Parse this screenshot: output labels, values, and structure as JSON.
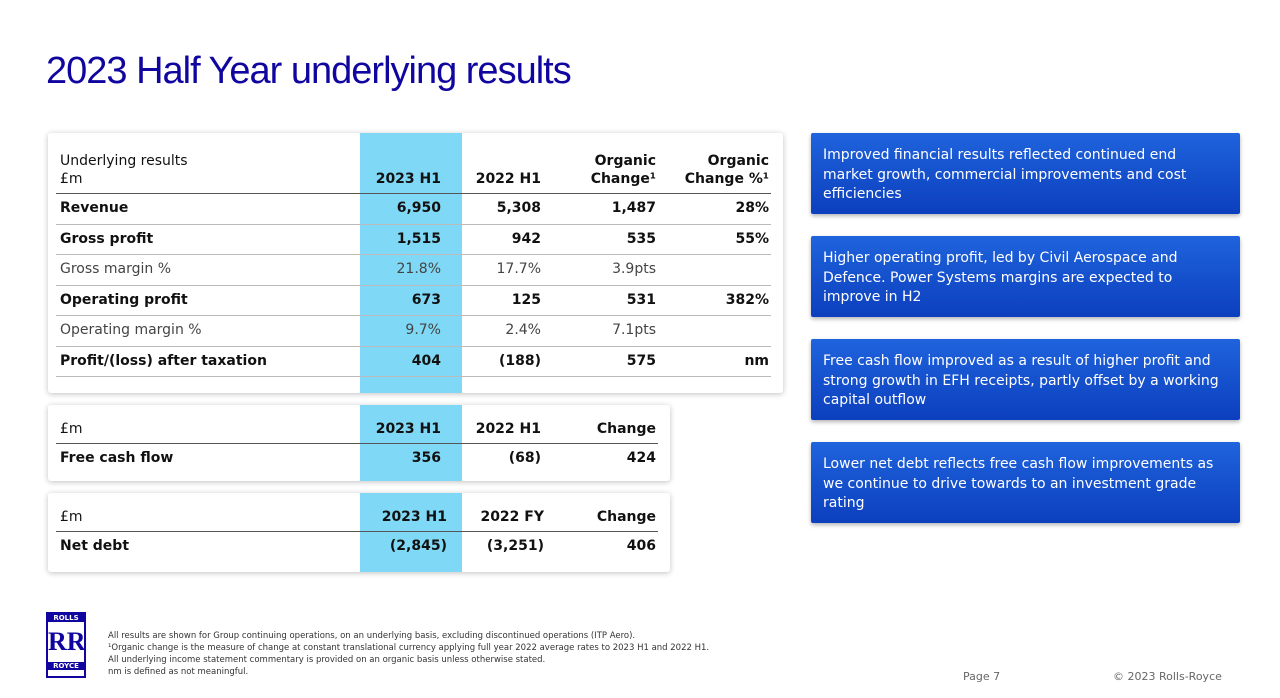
{
  "title": "2023 Half Year underlying results",
  "tables": [
    {
      "header": [
        "Underlying results\n£m",
        "2023 H1",
        "2022 H1",
        "Organic\nChange¹",
        "Organic\nChange %¹"
      ],
      "rows": [
        [
          "Revenue",
          "6,950",
          "5,308",
          "1,487",
          "28%"
        ],
        [
          "Gross profit",
          "1,515",
          "942",
          "535",
          "55%"
        ],
        [
          "Gross margin %",
          "21.8%",
          "17.7%",
          "3.9pts",
          ""
        ],
        [
          "Operating profit",
          "673",
          "125",
          "531",
          "382%"
        ],
        [
          "Operating margin %",
          "9.7%",
          "2.4%",
          "7.1pts",
          ""
        ],
        [
          "Profit/(loss) after taxation",
          "404",
          "(188)",
          "575",
          "nm"
        ]
      ]
    },
    {
      "header": [
        "£m",
        "2023 H1",
        "2022 H1",
        "Change"
      ],
      "rows": [
        [
          "Free cash flow",
          "356",
          "(68)",
          "424"
        ]
      ]
    },
    {
      "header": [
        "£m",
        "2023 H1",
        "2022 FY",
        "Change"
      ],
      "rows": [
        [
          "Net debt",
          "(2,845)",
          "(3,251)",
          "406"
        ]
      ]
    }
  ],
  "callouts": [
    "Improved financial results reflected continued end market growth, commercial improvements and cost efficiencies",
    "Higher operating profit, led by Civil Aerospace and Defence. Power Systems margins are expected to improve in H2",
    "Free cash flow improved as a result of higher profit and strong growth in EFH receipts, partly offset by a working capital outflow",
    "Lower net debt reflects free cash flow improvements as we continue to drive towards to an investment grade rating"
  ],
  "logo": {
    "top": "ROLLS",
    "bottom": "ROYCE"
  },
  "footnotes": [
    "All results are shown for Group continuing operations, on an underlying basis, excluding discontinued operations (ITP Aero).",
    "¹Organic change is the measure of change at constant translational currency applying full year 2022 average rates to 2023 H1 and 2022 H1.",
    "All underlying income statement commentary is provided on an organic basis unless otherwise stated.",
    "nm is defined as not meaningful."
  ],
  "page": "Page 7",
  "copyright": "© 2023 Rolls-Royce"
}
